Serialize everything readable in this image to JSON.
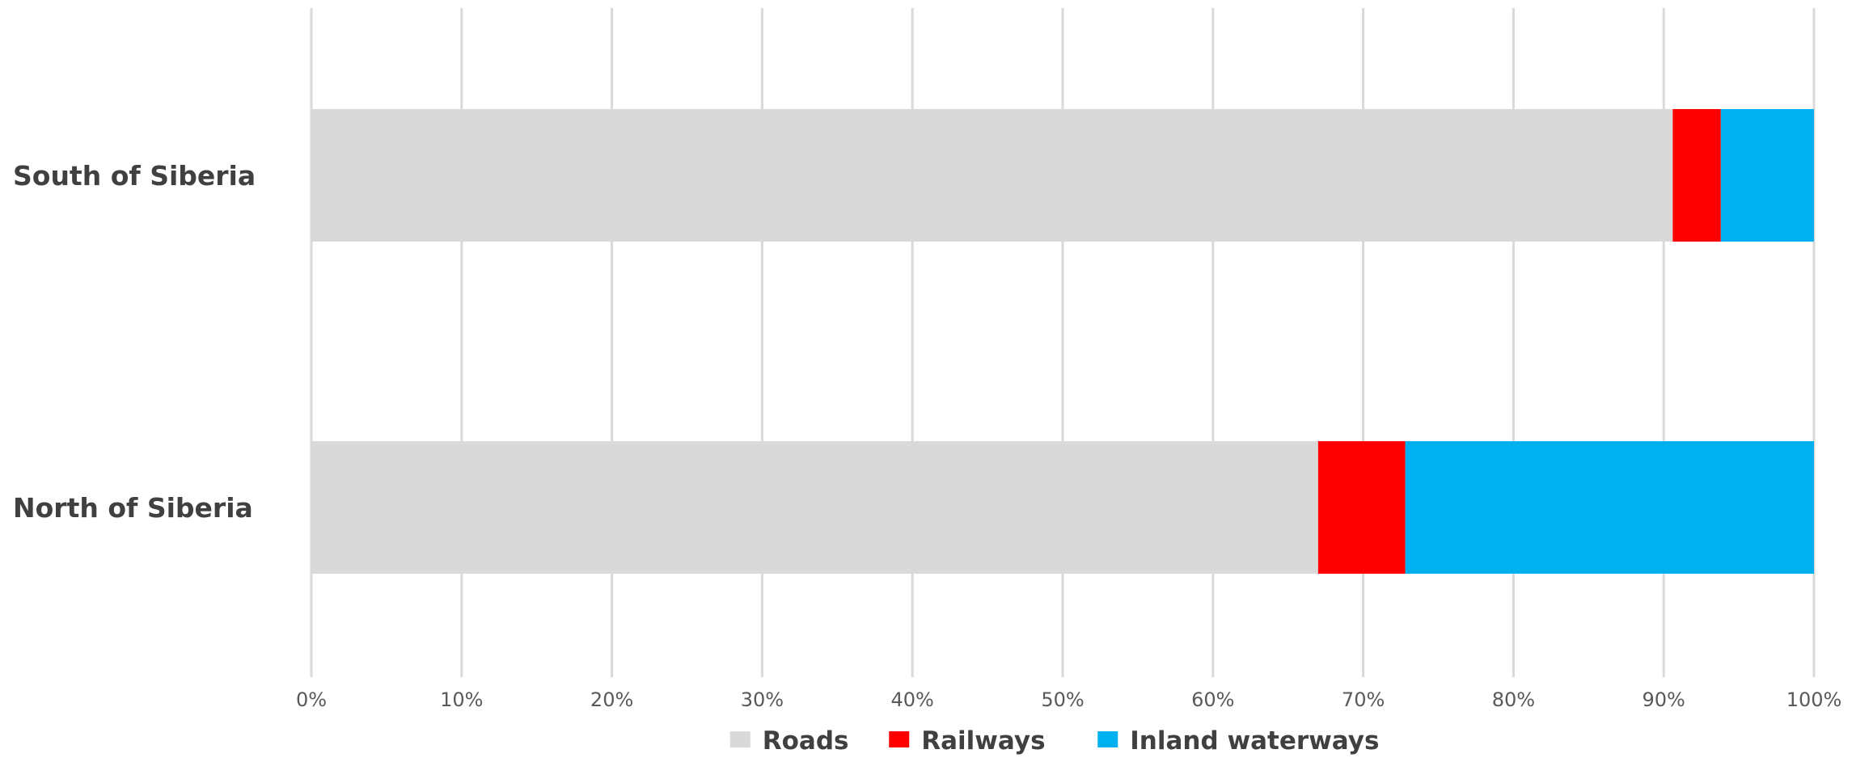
{
  "chart_data": {
    "type": "bar",
    "orientation": "horizontal",
    "stacked": "100%",
    "categories": [
      "South of Siberia",
      "North of Siberia"
    ],
    "series": [
      {
        "name": "Roads",
        "color": "#d9d9d9",
        "values": [
          90.6,
          67.0
        ]
      },
      {
        "name": "Railways",
        "color": "#ff0000",
        "values": [
          3.2,
          5.8
        ]
      },
      {
        "name": "Inland waterways",
        "color": "#00b0f0",
        "values": [
          6.2,
          27.2
        ]
      }
    ],
    "xlim": [
      0,
      100
    ],
    "xticks": [
      0,
      10,
      20,
      30,
      40,
      50,
      60,
      70,
      80,
      90,
      100
    ],
    "xtick_labels": [
      "0%",
      "10%",
      "20%",
      "30%",
      "40%",
      "50%",
      "60%",
      "70%",
      "80%",
      "90%",
      "100%"
    ],
    "grid": true,
    "legend_position": "bottom",
    "title": "",
    "xlabel": "",
    "ylabel": ""
  }
}
